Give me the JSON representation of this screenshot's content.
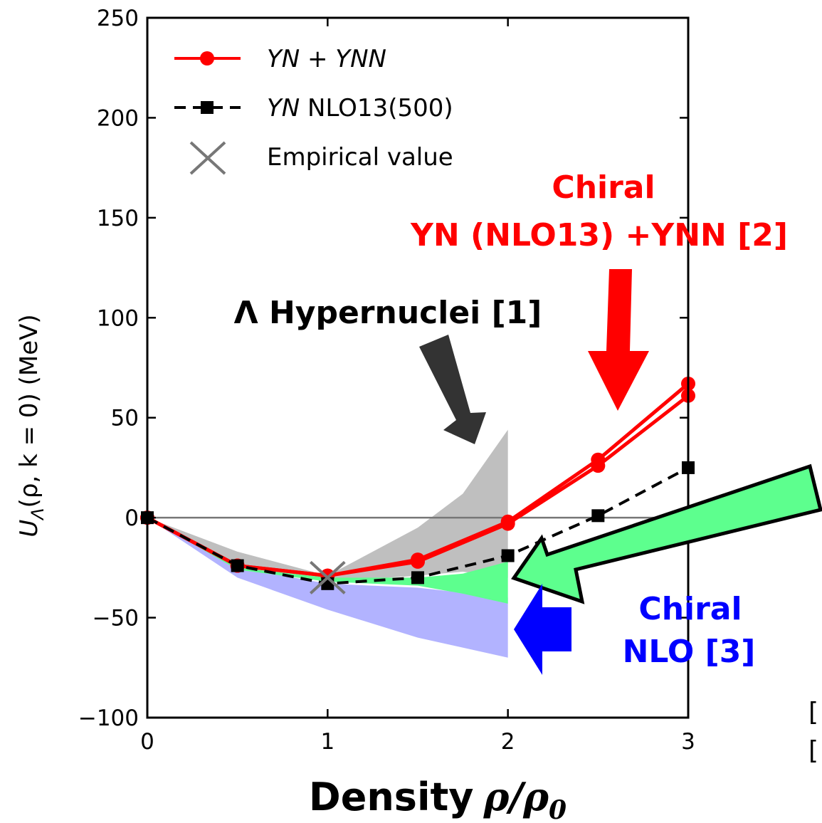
{
  "chart_data": {
    "type": "line",
    "xlabel_main": "Density",
    "xlabel_math": "ρ/ρ",
    "xlabel_sub": "0",
    "ylabel_main": "U",
    "ylabel_sub": "Λ",
    "ylabel_rest": "(ρ, k = 0) (MeV)",
    "xlim": [
      0,
      3
    ],
    "ylim": [
      -100,
      250
    ],
    "x_ticks": [
      0,
      1,
      2,
      3
    ],
    "y_ticks": [
      -100,
      -50,
      0,
      50,
      100,
      150,
      200,
      250
    ],
    "x_tick_labels": [
      "0",
      "1",
      "2",
      "3"
    ],
    "y_tick_labels": [
      "−100",
      "−50",
      "0",
      "50",
      "100",
      "150",
      "200",
      "250"
    ],
    "legend": [
      {
        "label_italic": "YN + YNN",
        "label_plain": "",
        "style": "red-circle-line"
      },
      {
        "label_italic": "YN",
        "label_plain": " NLO13(500)",
        "style": "black-square-dashed"
      },
      {
        "label_italic": "",
        "label_plain": "Empirical value",
        "style": "gray-x-marker"
      }
    ],
    "series": [
      {
        "name": "YN + YNN",
        "color": "#ff0000",
        "x": [
          0,
          0.5,
          1.0,
          1.5,
          2.0,
          2.5,
          3.0
        ],
        "y": [
          0,
          -24,
          -29,
          -21,
          -2,
          29,
          67
        ]
      },
      {
        "name": "YN + YNN",
        "color": "#ff0000",
        "x": [
          0,
          0.5,
          1.0,
          1.5,
          2.0,
          2.5,
          3.0
        ],
        "y": [
          0,
          -24,
          -29,
          -22,
          -3,
          26,
          61
        ]
      },
      {
        "name": "YN NLO13(500)",
        "color": "#000000",
        "x": [
          0,
          0.5,
          1.0,
          1.5,
          2.0,
          2.5,
          3.0
        ],
        "y": [
          0,
          -24,
          -33,
          -30,
          -19,
          1,
          25
        ]
      }
    ],
    "empirical_point": {
      "x": 1.0,
      "y": -30
    },
    "bands": [
      {
        "color": "#aaaaaa",
        "x": [
          0,
          0.5,
          1.0,
          1.5,
          1.75,
          2.0
        ],
        "upper": [
          0,
          -17,
          -29,
          -5,
          12,
          44
        ],
        "lower": [
          0,
          -24,
          -32,
          -29,
          -27,
          -30
        ]
      },
      {
        "color": "#9fa0ff",
        "x": [
          0,
          0.5,
          1.0,
          1.5,
          2.0
        ],
        "upper": [
          0,
          -25,
          -33,
          -35,
          -40
        ],
        "lower": [
          0,
          -30,
          -46,
          -60,
          -70
        ]
      },
      {
        "color": "#5dff8e",
        "x": [
          0,
          0.5,
          1.0,
          1.5,
          1.75,
          2.0
        ],
        "upper": [
          0,
          -25,
          -30,
          -30,
          -28,
          -22
        ],
        "lower": [
          0,
          -26,
          -32,
          -34,
          -38,
          -43
        ]
      }
    ],
    "zero_line": 0
  },
  "annotations": {
    "hypernuclei": "Λ Hypernuclei [1]",
    "chiral_ynn_line1": "Chiral",
    "chiral_ynn_line2": "YN (NLO13) +YNN [2]",
    "chiral_nlo_line1": "Chiral",
    "chiral_nlo_line2": "NLO [3]",
    "ref_marker_1": "[",
    "ref_marker_2": "["
  },
  "colors": {
    "red": "#ff0000",
    "blue": "#0000ff",
    "dark_arrow": "#333333",
    "green_arrow": "#5dff8e"
  }
}
